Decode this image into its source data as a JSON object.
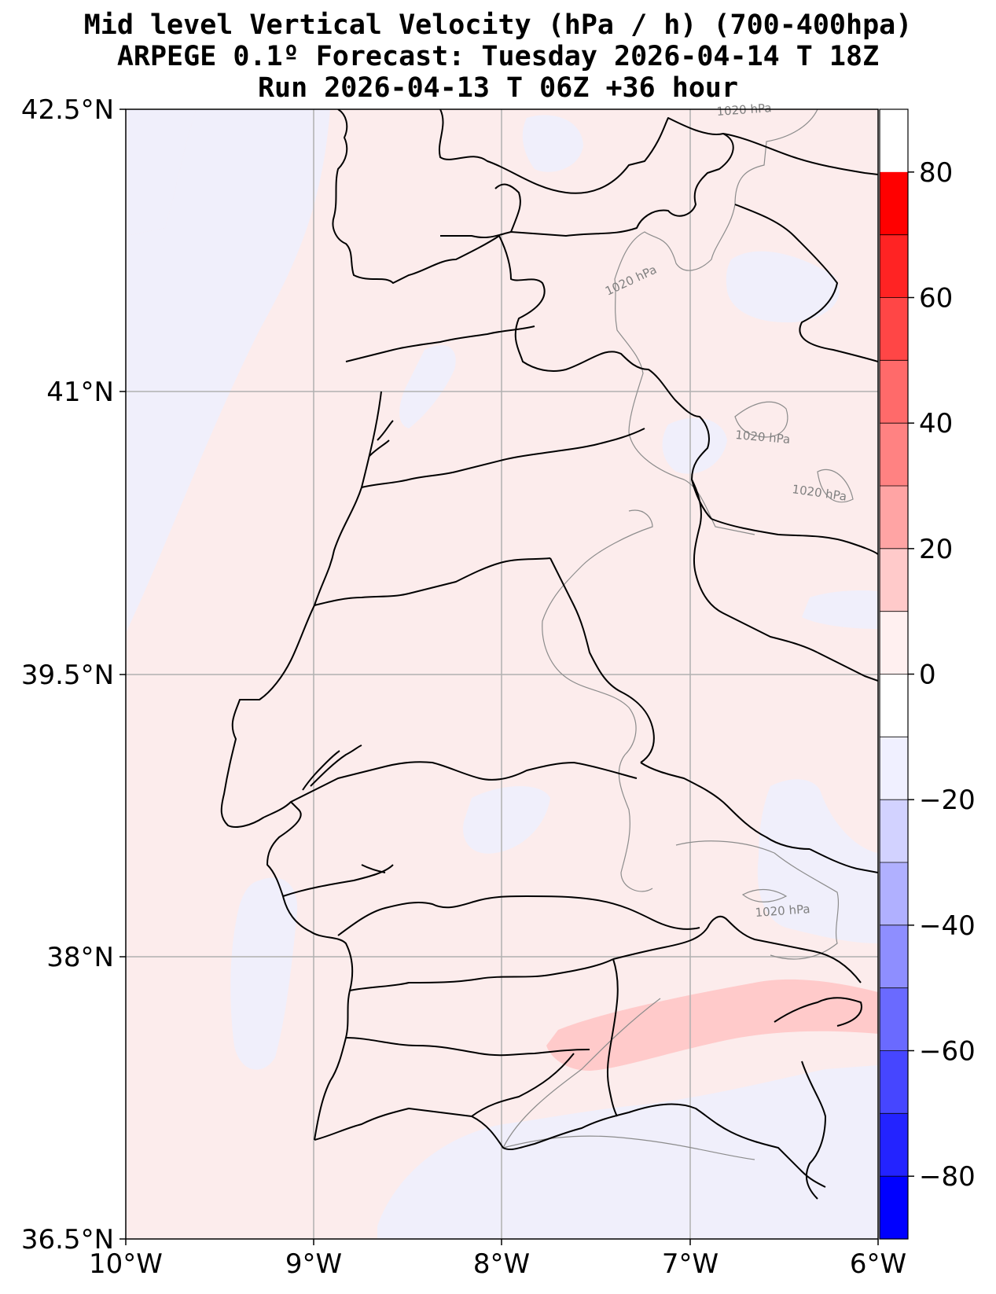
{
  "title": {
    "line1": "Mid level Vertical Velocity (hPa / h)  (700-400hpa)",
    "line2": "ARPEGE 0.1º Forecast: Tuesday 2026-04-14 T 18Z",
    "line3": "Run 2026-04-13 T 06Z +36 hour"
  },
  "map": {
    "extent": {
      "lon": [
        -10,
        -6
      ],
      "lat": [
        36.5,
        42.5
      ]
    },
    "lat_ticks": [
      "42.5°N",
      "41°N",
      "39.5°N",
      "38°N",
      "36.5°N"
    ],
    "lon_ticks": [
      "10°W",
      "9°W",
      "8°W",
      "7°W",
      "6°W"
    ],
    "grid": true,
    "background_color": "#fcecec",
    "contour_label": "1020 hPa"
  },
  "colorbar": {
    "ticks": [
      "80",
      "60",
      "40",
      "20",
      "0",
      "−20",
      "−40",
      "−60",
      "−80"
    ],
    "range": [
      -90,
      90
    ],
    "step": 10,
    "colors": [
      "#0000ff",
      "#2323ff",
      "#4646ff",
      "#6a6aff",
      "#8e8eff",
      "#b0b0ff",
      "#d2d2ff",
      "#f0f0ff",
      "#ffffff",
      "#fff0f0",
      "#ffcaca",
      "#ffa4a4",
      "#ff8282",
      "#ff6a6a",
      "#ff4646",
      "#ff2323",
      "#ff0000"
    ]
  }
}
